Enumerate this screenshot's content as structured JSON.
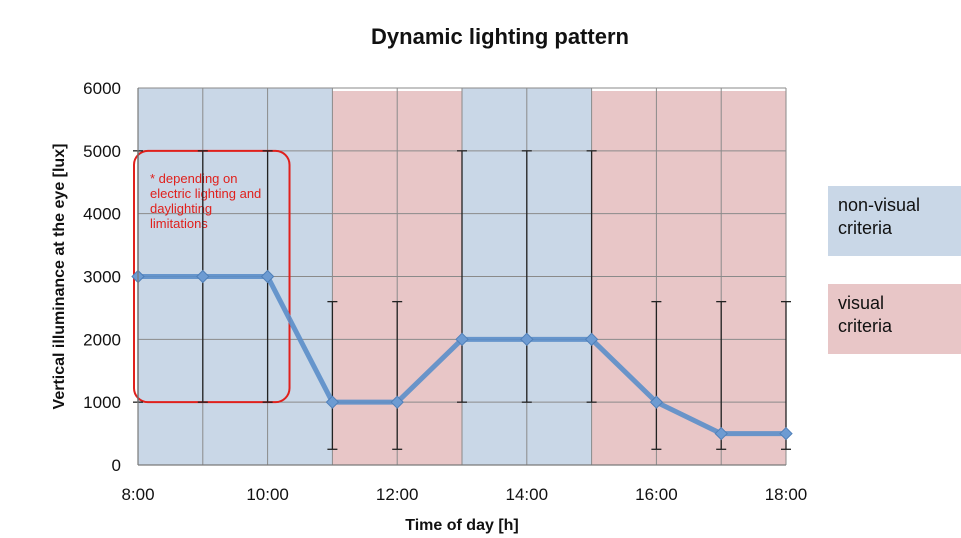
{
  "chart_data": {
    "type": "line",
    "title": "Dynamic lighting pattern",
    "xlabel": "Time of day [h]",
    "ylabel": "Vertical illuminance at the eye [lux]",
    "xlim": [
      8,
      18
    ],
    "ylim": [
      0,
      6000
    ],
    "x_ticks": [
      8,
      10,
      12,
      14,
      16,
      18
    ],
    "x_tick_labels": [
      "8:00",
      "10:00",
      "12:00",
      "14:00",
      "16:00",
      "18:00"
    ],
    "y_ticks": [
      0,
      1000,
      2000,
      3000,
      4000,
      5000,
      6000
    ],
    "y_tick_labels": [
      "0",
      "1000",
      "2000",
      "3000",
      "4000",
      "5000",
      "6000"
    ],
    "grid": true,
    "series": [
      {
        "x": [
          8,
          9,
          10,
          11,
          12,
          13,
          14,
          15,
          16,
          17,
          18
        ],
        "values": [
          3000,
          3000,
          3000,
          1000,
          1000,
          2000,
          2000,
          2000,
          1000,
          500,
          500
        ],
        "error_low": [
          1000,
          1000,
          1000,
          250,
          250,
          1000,
          1000,
          1000,
          250,
          250,
          250
        ],
        "error_high": [
          5000,
          5000,
          5000,
          2600,
          2600,
          5000,
          5000,
          5000,
          2600,
          2600,
          2600
        ],
        "color": "#5b8ec9"
      }
    ],
    "background_bands": [
      {
        "from": 8,
        "to": 11,
        "category": "non-visual",
        "color": "#c9d7e7"
      },
      {
        "from": 11,
        "to": 13,
        "category": "visual",
        "color": "#e8c6c7"
      },
      {
        "from": 13,
        "to": 15,
        "category": "non-visual",
        "color": "#c9d7e7"
      },
      {
        "from": 15,
        "to": 18,
        "category": "visual",
        "color": "#e8c6c7"
      }
    ],
    "annotation": {
      "lines": [
        "* depending on",
        "electric lighting and",
        "daylighting",
        "limitations"
      ],
      "color": "#e0201c",
      "box_x": [
        8,
        10.4
      ],
      "box_y": [
        1000,
        5000
      ]
    },
    "legend": [
      {
        "lines": [
          "non-visual",
          "criteria"
        ],
        "color": "#c9d7e7"
      },
      {
        "lines": [
          "visual",
          "criteria"
        ],
        "color": "#e8c6c7"
      }
    ],
    "legend_position": "right"
  }
}
